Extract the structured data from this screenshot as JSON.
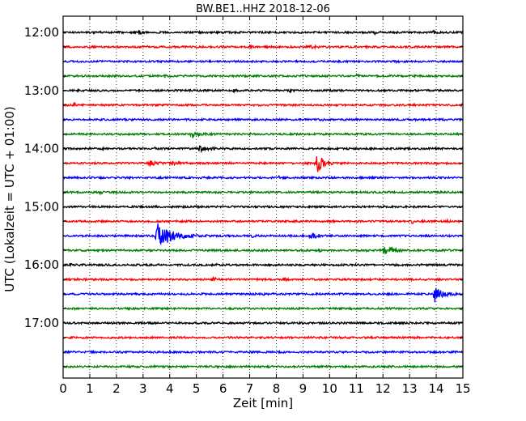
{
  "chart_data": {
    "type": "line",
    "title": "BW.BE1..HHZ 2018-12-06",
    "xlabel": "Zeit  [min]",
    "ylabel": "UTC (Lokalzeit = UTC + 01:00)",
    "xlim": [
      0,
      15
    ],
    "x_ticks": [
      "0",
      "1",
      "2",
      "3",
      "4",
      "5",
      "6",
      "7",
      "8",
      "9",
      "10",
      "11",
      "12",
      "13",
      "14",
      "15"
    ],
    "y_tick_labels": [
      "12:00",
      "13:00",
      "14:00",
      "15:00",
      "16:00",
      "17:00"
    ],
    "grid": "vertical-dotted",
    "trace_colors": [
      "#000000",
      "#ff0000",
      "#0000ff",
      "#008000"
    ],
    "trace_count": 24,
    "traces": [
      {
        "start": "12:00",
        "events": [
          [
            2.85,
            0.35,
            0.12
          ],
          [
            7.85,
            0.3,
            0.05
          ],
          [
            11.7,
            0.25,
            0.05
          ],
          [
            13.9,
            0.45,
            0.06
          ]
        ]
      },
      {
        "start": "12:15",
        "events": [
          [
            3.15,
            0.3,
            0.05
          ],
          [
            9.2,
            0.35,
            0.2
          ],
          [
            7.0,
            0.2,
            0.05
          ]
        ]
      },
      {
        "start": "12:30",
        "events": [
          [
            4.0,
            0.3,
            0.05
          ],
          [
            11.7,
            0.35,
            0.05
          ],
          [
            12.5,
            0.25,
            0.08
          ]
        ]
      },
      {
        "start": "12:45",
        "events": [
          [
            3.8,
            0.3,
            0.05
          ],
          [
            11.0,
            0.4,
            0.08
          ]
        ]
      },
      {
        "start": "13:00",
        "events": [
          [
            0.45,
            0.45,
            0.05
          ],
          [
            6.4,
            0.5,
            0.06
          ],
          [
            8.5,
            0.25,
            0.05
          ]
        ]
      },
      {
        "start": "13:15",
        "events": [
          [
            0.4,
            0.45,
            0.08
          ],
          [
            3.7,
            0.25,
            0.05
          ],
          [
            14.95,
            0.4,
            0.05
          ]
        ]
      },
      {
        "start": "13:30",
        "events": [
          [
            9.7,
            0.2,
            0.1
          ]
        ]
      },
      {
        "start": "13:45",
        "events": [
          [
            4.85,
            0.9,
            0.2
          ],
          [
            7.0,
            0.2,
            0.05
          ]
        ]
      },
      {
        "start": "14:00",
        "events": [
          [
            1.5,
            0.3,
            0.05
          ],
          [
            3.45,
            0.3,
            0.05
          ],
          [
            5.15,
            0.65,
            0.25
          ],
          [
            15.0,
            0.4,
            0.05
          ]
        ]
      },
      {
        "start": "14:15",
        "events": [
          [
            3.25,
            0.6,
            0.2
          ],
          [
            4.05,
            0.5,
            0.2
          ],
          [
            9.55,
            2.0,
            0.25
          ],
          [
            14.0,
            0.3,
            0.05
          ]
        ]
      },
      {
        "start": "14:30",
        "events": [
          [
            8.1,
            0.35,
            0.05
          ]
        ]
      },
      {
        "start": "14:45",
        "events": [
          [
            1.4,
            0.35,
            0.05
          ],
          [
            7.7,
            0.25,
            0.05
          ]
        ]
      },
      {
        "start": "15:00",
        "events": [
          [
            5.0,
            0.4,
            0.05
          ],
          [
            1.0,
            0.2,
            0.05
          ]
        ]
      },
      {
        "start": "15:15",
        "events": [
          [
            13.1,
            0.45,
            0.08
          ],
          [
            14.4,
            0.35,
            0.05
          ]
        ]
      },
      {
        "start": "15:30",
        "events": [
          [
            3.6,
            3.0,
            0.45
          ],
          [
            9.3,
            0.6,
            0.25
          ],
          [
            7.1,
            0.3,
            0.05
          ]
        ]
      },
      {
        "start": "15:45",
        "events": [
          [
            12.1,
            1.0,
            0.25
          ],
          [
            9.6,
            0.3,
            0.05
          ]
        ]
      },
      {
        "start": "16:00",
        "events": [
          [
            0.25,
            0.45,
            0.05
          ],
          [
            5.75,
            0.3,
            0.05
          ]
        ]
      },
      {
        "start": "16:15",
        "events": [
          [
            5.6,
            0.6,
            0.1
          ],
          [
            8.3,
            0.55,
            0.05
          ]
        ]
      },
      {
        "start": "16:30",
        "events": [
          [
            13.95,
            1.8,
            0.25
          ],
          [
            7.5,
            0.25,
            0.05
          ]
        ]
      },
      {
        "start": "16:45",
        "events": [
          [
            10.8,
            0.25,
            0.05
          ]
        ]
      },
      {
        "start": "17:00",
        "events": [
          [
            10.4,
            0.25,
            0.05
          ]
        ]
      },
      {
        "start": "17:15",
        "events": []
      },
      {
        "start": "17:30",
        "events": [
          [
            4.0,
            0.2,
            0.05
          ]
        ]
      },
      {
        "start": "17:45",
        "events": []
      }
    ]
  }
}
